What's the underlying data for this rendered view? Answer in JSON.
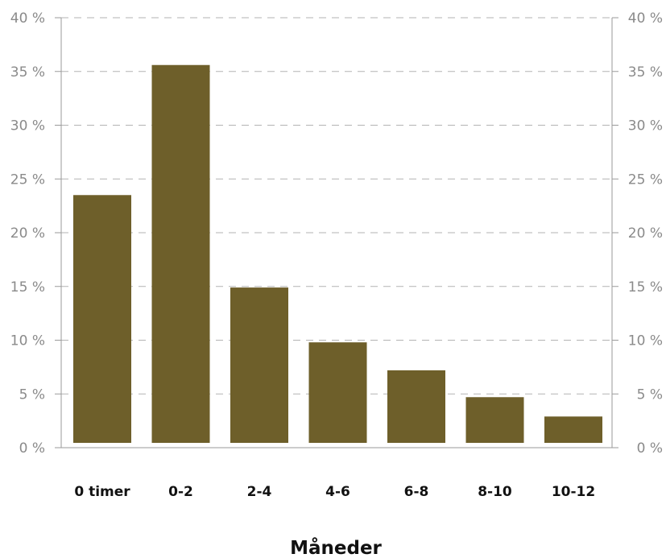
{
  "colors": {
    "bar": "#6e5f2a",
    "grid": "#b3b3b3",
    "axis": "#9a9a9a"
  },
  "chart_data": {
    "type": "bar",
    "categories": [
      "0 timer",
      "0-2",
      "2-4",
      "4-6",
      "6-8",
      "8-10",
      "10-12"
    ],
    "values": [
      23.5,
      35.6,
      14.9,
      9.8,
      7.2,
      4.7,
      2.9
    ],
    "xlabel": "Måneder",
    "ylabel": "",
    "ylim": [
      0,
      40
    ],
    "yticks": [
      0,
      5,
      10,
      15,
      20,
      25,
      30,
      35,
      40
    ],
    "ytick_labels": [
      "0 %",
      "5 %",
      "10 %",
      "15 %",
      "20 %",
      "25 %",
      "30 %",
      "35 %",
      "40 %"
    ],
    "grid": true,
    "secondary_y_axis": true
  }
}
